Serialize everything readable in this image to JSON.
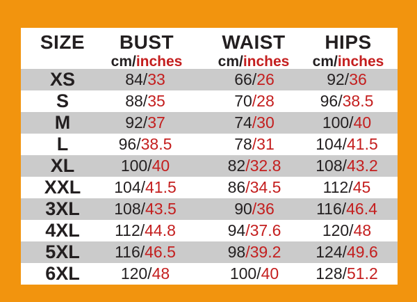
{
  "page": {
    "background_color": "#F2940E",
    "row_shade_color": "#CBCBCB",
    "text_color": "#231F20",
    "accent_red": "#C41E1E"
  },
  "table": {
    "header": {
      "size": "SIZE",
      "bust": "BUST",
      "waist": "WAIST",
      "hips": "HIPS",
      "unit_black": "cm/",
      "unit_red": "inches"
    },
    "rows": [
      {
        "size": "XS",
        "bust": {
          "black": "84/",
          "red": "33"
        },
        "waist": {
          "black": "66/",
          "red": "26"
        },
        "hips": {
          "black": "92/",
          "red": "36"
        }
      },
      {
        "size": "S",
        "bust": {
          "black": "88/",
          "red": "35"
        },
        "waist": {
          "black": "70",
          "red": "/28"
        },
        "hips": {
          "black": "96/",
          "red": "38.5"
        }
      },
      {
        "size": "M",
        "bust": {
          "black": "92/",
          "red": "37"
        },
        "waist": {
          "black": "74",
          "red": "/30"
        },
        "hips": {
          "black": "100/",
          "red": "40"
        }
      },
      {
        "size": "L",
        "bust": {
          "black": "96/",
          "red": "38.5"
        },
        "waist": {
          "black": "78",
          "red": "/31"
        },
        "hips": {
          "black": "104/",
          "red": "41.5"
        }
      },
      {
        "size": "XL",
        "bust": {
          "black": "100/",
          "red": "40"
        },
        "waist": {
          "black": "82",
          "red": "/32.8"
        },
        "hips": {
          "black": "108/",
          "red": "43.2"
        }
      },
      {
        "size": "XXL",
        "bust": {
          "black": "104/",
          "red": "41.5"
        },
        "waist": {
          "black": "86",
          "red": "/34.5"
        },
        "hips": {
          "black": "112/",
          "red": "45"
        }
      },
      {
        "size": "3XL",
        "bust": {
          "black": "108/",
          "red": "43.5"
        },
        "waist": {
          "black": "90",
          "red": "/36"
        },
        "hips": {
          "black": "116/",
          "red": "46.4"
        }
      },
      {
        "size": "4XL",
        "bust": {
          "black": "112/",
          "red": "44.8"
        },
        "waist": {
          "black": "94",
          "red": "/37.6"
        },
        "hips": {
          "black": "120/",
          "red": "48"
        }
      },
      {
        "size": "5XL",
        "bust": {
          "black": "116/",
          "red": "46.5"
        },
        "waist": {
          "black": "98",
          "red": "/39.2"
        },
        "hips": {
          "black": "124/",
          "red": "49.6"
        }
      },
      {
        "size": "6XL",
        "bust": {
          "black": "120/",
          "red": "48"
        },
        "waist": {
          "black": "100/",
          "red": "40"
        },
        "hips": {
          "black": "128/",
          "red": "51.2"
        }
      }
    ]
  },
  "chart_data": {
    "type": "table",
    "title": "Garment size chart (cm / inches)",
    "columns": [
      "SIZE",
      "BUST cm",
      "BUST inches",
      "WAIST cm",
      "WAIST inches",
      "HIPS cm",
      "HIPS inches"
    ],
    "rows": [
      [
        "XS",
        84,
        33,
        66,
        26,
        92,
        36
      ],
      [
        "S",
        88,
        35,
        70,
        28,
        96,
        38.5
      ],
      [
        "M",
        92,
        37,
        74,
        30,
        100,
        40
      ],
      [
        "L",
        96,
        38.5,
        78,
        31,
        104,
        41.5
      ],
      [
        "XL",
        100,
        40,
        82,
        32.8,
        108,
        43.2
      ],
      [
        "XXL",
        104,
        41.5,
        86,
        34.5,
        112,
        45
      ],
      [
        "3XL",
        108,
        43.5,
        90,
        36,
        116,
        46.4
      ],
      [
        "4XL",
        112,
        44.8,
        94,
        37.6,
        120,
        48
      ],
      [
        "5XL",
        116,
        46.5,
        98,
        39.2,
        124,
        49.6
      ],
      [
        "6XL",
        120,
        48,
        100,
        40,
        128,
        51.2
      ]
    ]
  }
}
